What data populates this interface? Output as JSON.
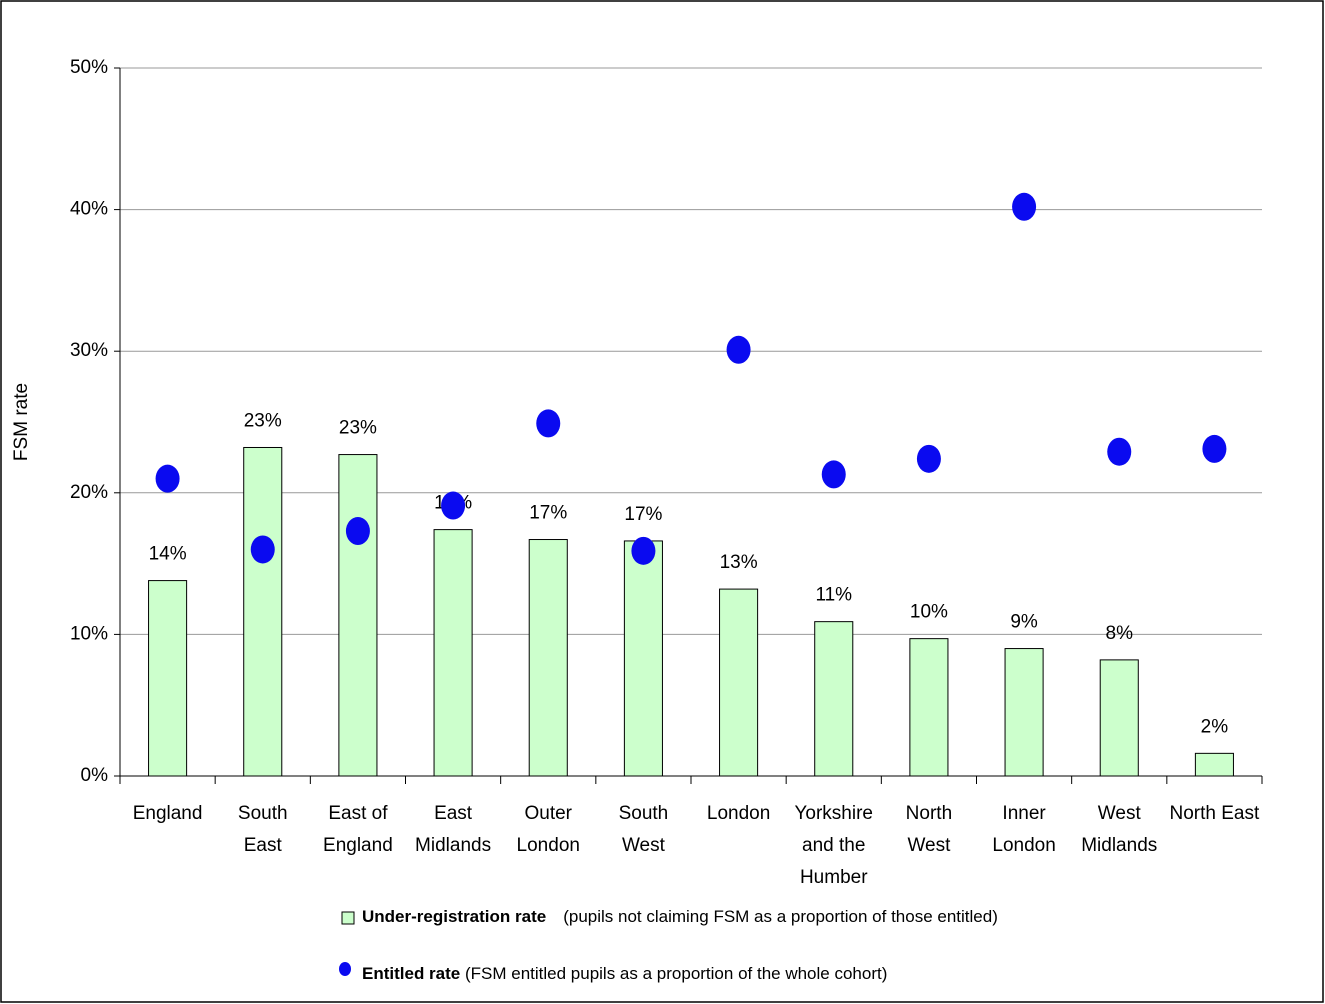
{
  "chart_data": {
    "type": "bar_dot",
    "y_label": "FSM rate",
    "categories": [
      "England",
      "South East",
      "East of England",
      "East Midlands",
      "Outer London",
      "South West",
      "London",
      "Yorkshire and the Humber",
      "North West",
      "Inner London",
      "West Midlands",
      "North East"
    ],
    "series": [
      {
        "name": "Under-registration rate",
        "note": "(pupils not claiming FSM as a proportion of those entitled)",
        "color": "#ccffcc",
        "kind": "bar",
        "values": [
          13.8,
          23.2,
          22.7,
          17.4,
          16.7,
          16.6,
          13.2,
          10.9,
          9.7,
          9.0,
          8.2,
          1.6
        ],
        "value_labels": [
          "14%",
          "23%",
          "23%",
          "17%",
          "17%",
          "17%",
          "13%",
          "11%",
          "10%",
          "9%",
          "8%",
          "2%"
        ]
      },
      {
        "name": "Entitled rate",
        "note": "(FSM entitled pupils as a proportion of the whole cohort)",
        "color": "#0a0af0",
        "kind": "dot",
        "values": [
          21.0,
          16.0,
          17.3,
          19.1,
          24.9,
          15.9,
          30.1,
          21.3,
          22.4,
          40.2,
          22.9,
          23.1
        ]
      }
    ],
    "ylim": [
      0,
      50
    ],
    "yticks": [
      {
        "value": 0,
        "label": "0%"
      },
      {
        "value": 10,
        "label": "10%"
      },
      {
        "value": 20,
        "label": "20%"
      },
      {
        "value": 30,
        "label": "30%"
      },
      {
        "value": 40,
        "label": "40%"
      },
      {
        "value": 50,
        "label": "50%"
      }
    ],
    "grid": true
  }
}
